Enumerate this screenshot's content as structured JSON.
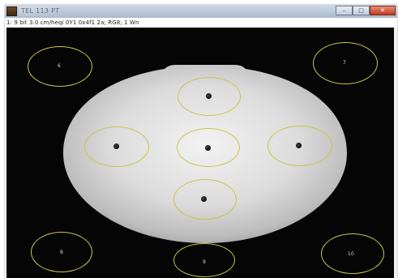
{
  "window": {
    "title": "TEL 113 PT",
    "status_line": "1: 9 bit  3.0 cm/heqi 0Y1 0x4f1 2a; RG8; 1 Wn",
    "controls": {
      "minimize": "–",
      "maximize": "□",
      "close": "✕"
    }
  },
  "image": {
    "background_color": "#050505",
    "phantom_color": "#d9d9d9",
    "roi_outline_color": "#c9c64a",
    "inner_rois": [
      {
        "id": "top"
      },
      {
        "id": "left"
      },
      {
        "id": "center"
      },
      {
        "id": "right"
      },
      {
        "id": "bottom"
      }
    ],
    "corner_rois": [
      {
        "id": "top-left",
        "label": "6"
      },
      {
        "id": "top-right",
        "label": "7"
      },
      {
        "id": "bottom-left",
        "label": "8"
      },
      {
        "id": "bottom-center",
        "label": "9"
      },
      {
        "id": "bottom-right",
        "label": "10"
      }
    ]
  }
}
